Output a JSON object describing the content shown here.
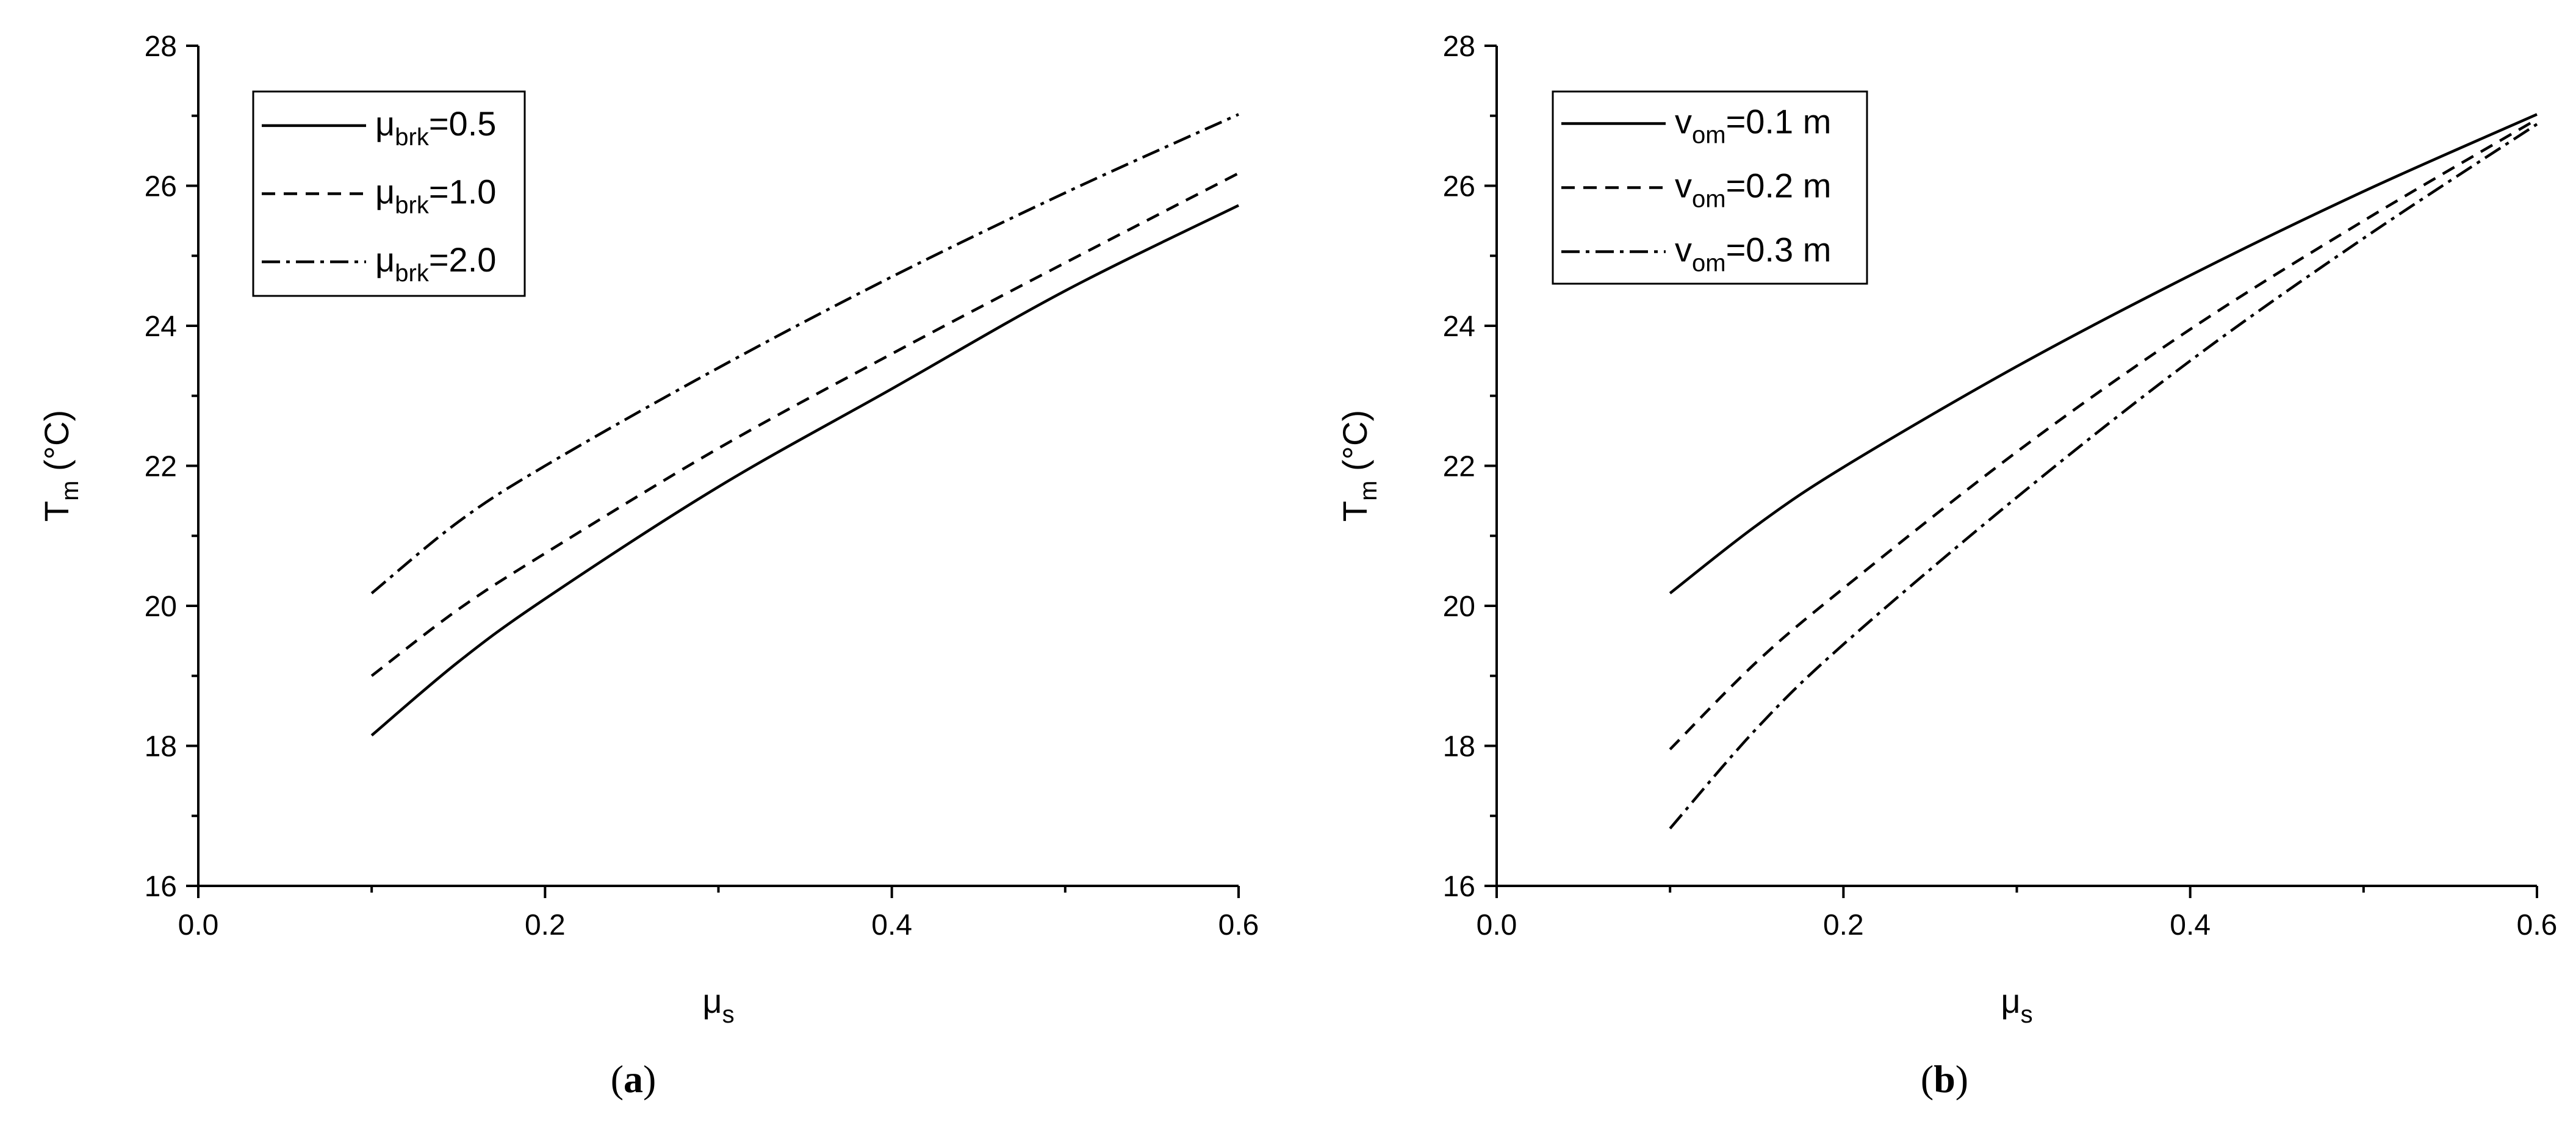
{
  "chart_data": [
    {
      "type": "line",
      "panel_label": "a",
      "xlabel": "μs",
      "ylabel": "Tm (°C)",
      "xlim": [
        0.0,
        0.6
      ],
      "ylim": [
        16,
        28
      ],
      "x_ticks": [
        0.0,
        0.2,
        0.4,
        0.6
      ],
      "x_tick_labels": [
        "0.0",
        "0.2",
        "0.4",
        "0.6"
      ],
      "y_ticks": [
        16,
        18,
        20,
        22,
        24,
        26,
        28
      ],
      "y_tick_labels": [
        "16",
        "18",
        "20",
        "22",
        "24",
        "26",
        "28"
      ],
      "grid": false,
      "legend_position": "top-left",
      "series": [
        {
          "name": "μbrk=0.5",
          "style": "solid",
          "x": [
            0.1,
            0.15,
            0.2,
            0.3,
            0.4,
            0.5,
            0.6
          ],
          "y": [
            18.15,
            19.2,
            20.1,
            21.7,
            23.1,
            24.5,
            25.72
          ]
        },
        {
          "name": "μbrk=1.0",
          "style": "dashed",
          "x": [
            0.1,
            0.15,
            0.2,
            0.3,
            0.4,
            0.5,
            0.6
          ],
          "y": [
            19.0,
            19.95,
            20.75,
            22.25,
            23.6,
            24.9,
            26.18
          ]
        },
        {
          "name": "μbrk=2.0",
          "style": "dashdot",
          "x": [
            0.1,
            0.15,
            0.2,
            0.3,
            0.4,
            0.5,
            0.6
          ],
          "y": [
            20.18,
            21.2,
            22.0,
            23.4,
            24.7,
            25.9,
            27.02
          ]
        }
      ]
    },
    {
      "type": "line",
      "panel_label": "b",
      "xlabel": "μs",
      "ylabel": "Tm (°C)",
      "xlim": [
        0.0,
        0.6
      ],
      "ylim": [
        16,
        28
      ],
      "x_ticks": [
        0.0,
        0.2,
        0.4,
        0.6
      ],
      "x_tick_labels": [
        "0.0",
        "0.2",
        "0.4",
        "0.6"
      ],
      "y_ticks": [
        16,
        18,
        20,
        22,
        24,
        26,
        28
      ],
      "y_tick_labels": [
        "16",
        "18",
        "20",
        "22",
        "24",
        "26",
        "28"
      ],
      "grid": false,
      "legend_position": "top-left",
      "series": [
        {
          "name": "vom=0.1 m",
          "style": "solid",
          "x": [
            0.1,
            0.15,
            0.2,
            0.3,
            0.4,
            0.5,
            0.6
          ],
          "y": [
            20.18,
            21.15,
            21.98,
            23.42,
            24.72,
            25.92,
            27.02
          ]
        },
        {
          "name": "vom=0.2 m",
          "style": "dashed",
          "x": [
            0.1,
            0.15,
            0.2,
            0.3,
            0.4,
            0.5,
            0.6
          ],
          "y": [
            17.95,
            19.2,
            20.25,
            22.2,
            23.95,
            25.5,
            26.95
          ]
        },
        {
          "name": "vom=0.3 m",
          "style": "dashdot",
          "x": [
            0.1,
            0.15,
            0.2,
            0.3,
            0.4,
            0.5,
            0.6
          ],
          "y": [
            16.82,
            18.25,
            19.45,
            21.55,
            23.5,
            25.25,
            26.88
          ]
        }
      ]
    }
  ],
  "legend_a": [
    {
      "base": "μ",
      "sub": "brk",
      "rest": "=0.5"
    },
    {
      "base": "μ",
      "sub": "brk",
      "rest": "=1.0"
    },
    {
      "base": "μ",
      "sub": "brk",
      "rest": "=2.0"
    }
  ],
  "legend_b": [
    {
      "base": "v",
      "sub": "om",
      "rest": "=0.1 m"
    },
    {
      "base": "v",
      "sub": "om",
      "rest": "=0.2 m"
    },
    {
      "base": "v",
      "sub": "om",
      "rest": "=0.3 m"
    }
  ],
  "axis_text": {
    "x_base": "μ",
    "x_sub": "s",
    "y_base": "T",
    "y_sub": "m",
    "y_rest": " (°C)"
  },
  "captions": [
    "(a)",
    "(b)"
  ]
}
